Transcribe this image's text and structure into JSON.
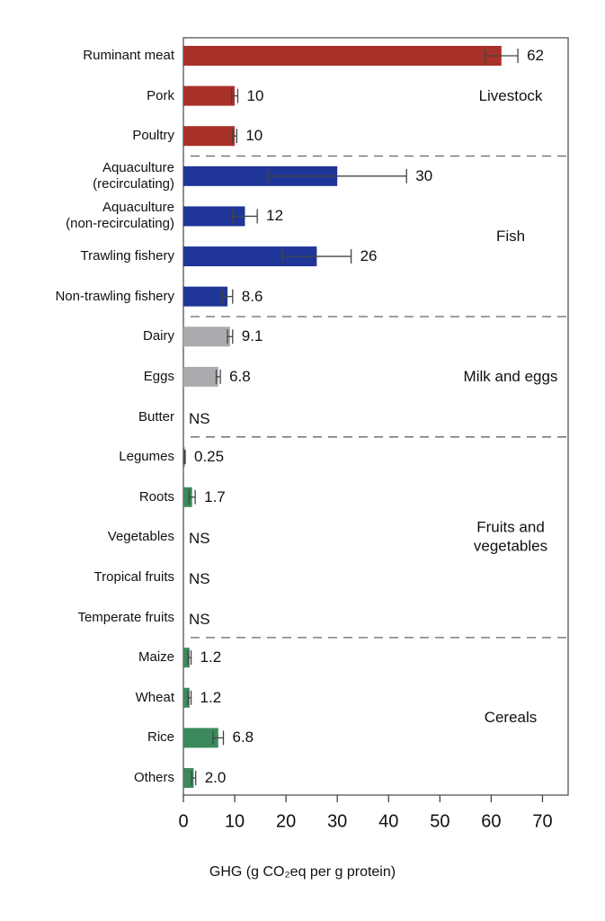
{
  "chart_data": {
    "type": "bar",
    "orientation": "horizontal",
    "x_label": "GHG (g CO₂eq per g protein)",
    "xlim": [
      0,
      75
    ],
    "xticks": [
      0,
      10,
      20,
      30,
      40,
      50,
      60,
      70
    ],
    "groups": [
      {
        "name": "Livestock",
        "color": "#a8312a",
        "categories": [
          "Ruminant meat",
          "Pork",
          "Poultry"
        ],
        "values": [
          62,
          10,
          10
        ],
        "errors": [
          3.2,
          0.6,
          0.4
        ],
        "value_labels": [
          "62",
          "10",
          "10"
        ]
      },
      {
        "name": "Fish",
        "color": "#1f3598",
        "categories": [
          "Aquaculture\n(recirculating)",
          "Aquaculture\n(non-recirculating)",
          "Trawling fishery",
          "Non-trawling fishery"
        ],
        "values": [
          30,
          12,
          26,
          8.6
        ],
        "errors": [
          13.5,
          2.4,
          6.7,
          1.0
        ],
        "value_labels": [
          "30",
          "12",
          "26",
          "8.6"
        ]
      },
      {
        "name": "Milk and eggs",
        "color": "#aaabae",
        "categories": [
          "Dairy",
          "Eggs",
          "Butter"
        ],
        "values": [
          9.1,
          6.8,
          null
        ],
        "errors": [
          0.5,
          0.4,
          null
        ],
        "value_labels": [
          "9.1",
          "6.8",
          "NS"
        ]
      },
      {
        "name": "Fruits and\nvegetables",
        "color": "#3c8a5c",
        "categories": [
          "Legumes",
          "Roots",
          "Vegetables",
          "Tropical fruits",
          "Temperate fruits"
        ],
        "values": [
          0.25,
          1.7,
          null,
          null,
          null
        ],
        "errors": [
          0.1,
          0.6,
          null,
          null,
          null
        ],
        "value_labels": [
          "0.25",
          "1.7",
          "NS",
          "NS",
          "NS"
        ]
      },
      {
        "name": "Cereals",
        "color": "#3c8a5c",
        "categories": [
          "Maize",
          "Wheat",
          "Rice",
          "Others"
        ],
        "values": [
          1.2,
          1.2,
          6.8,
          2.0
        ],
        "errors": [
          0.3,
          0.3,
          1.0,
          0.4
        ],
        "value_labels": [
          "1.2",
          "1.2",
          "6.8",
          "2.0"
        ]
      }
    ]
  }
}
